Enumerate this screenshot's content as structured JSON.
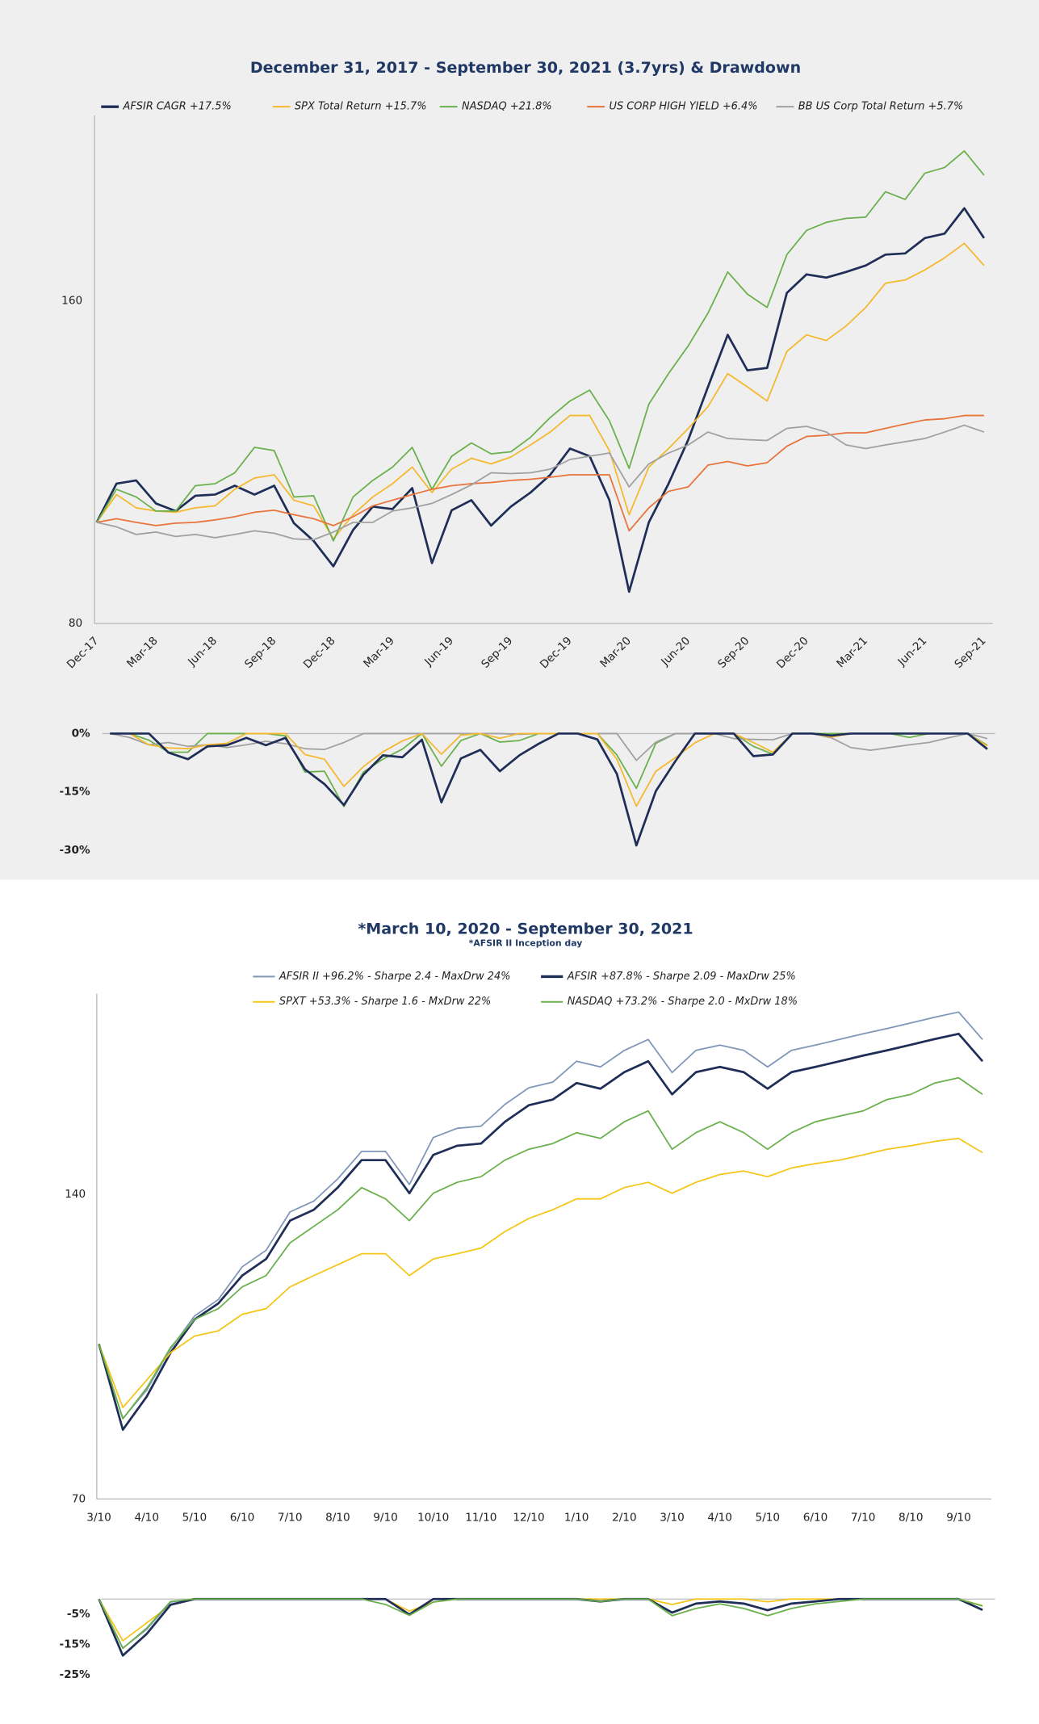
{
  "chart_data": [
    {
      "type": "line",
      "title": "December 31, 2017 - September 30, 2021 (3.7yrs) & Drawdown",
      "categories": [
        "Dec-17",
        null,
        null,
        "Mar-18",
        null,
        null,
        "Jun-18",
        null,
        null,
        "Sep-18",
        null,
        null,
        "Dec-18",
        null,
        null,
        "Mar-19",
        null,
        null,
        "Jun-19",
        null,
        null,
        "Sep-19",
        null,
        null,
        "Dec-19",
        null,
        null,
        "Mar-20",
        null,
        null,
        "Jun-20",
        null,
        null,
        "Sep-20",
        null,
        null,
        "Dec-20",
        null,
        null,
        "Mar-21",
        null,
        null,
        "Jun-21",
        null,
        null,
        "Sep-21"
      ],
      "ylim": [
        80,
        206
      ],
      "yticks": [
        80,
        160
      ],
      "grid": false,
      "series": [
        {
          "name": "AFSIR  CAGR +17.5%",
          "color": "#1f2e57",
          "values": [
            105.1,
            114.7,
            115.5,
            109.8,
            107.9,
            111.7,
            112,
            114.2,
            112,
            114.2,
            104.9,
            100.5,
            94.2,
            103.2,
            109,
            108.4,
            113.6,
            95,
            108.1,
            110.6,
            104.3,
            109,
            112.5,
            116.9,
            123.4,
            121.5,
            110.6,
            87.9,
            105.1,
            114.7,
            125.6,
            138.7,
            151.6,
            142.8,
            143.4,
            162,
            166.6,
            165.8,
            167.2,
            168.8,
            171.5,
            171.8,
            175.6,
            176.7,
            183,
            175.6
          ]
        },
        {
          "name": "SPX Total Return +15.7%",
          "color": "#f5b82e",
          "values": [
            105.1,
            112,
            108.7,
            107.9,
            107.6,
            108.7,
            109.2,
            113.3,
            116.1,
            116.9,
            110.6,
            109.2,
            101,
            107,
            111.4,
            114.7,
            118.8,
            112.5,
            118.3,
            121,
            119.6,
            121.3,
            124.3,
            127.5,
            131.6,
            131.6,
            122.9,
            107,
            118.8,
            123.4,
            128.4,
            133.8,
            142,
            138.7,
            135.2,
            147.5,
            151.6,
            150.2,
            153.8,
            158.4,
            164.4,
            165.2,
            167.7,
            170.7,
            174.3,
            168.8
          ]
        },
        {
          "name": "NASDAQ +21.8%",
          "color": "#6ab04c",
          "values": [
            105.1,
            113.3,
            111.4,
            107.9,
            107.9,
            114.2,
            114.7,
            117.4,
            123.7,
            122.9,
            111.4,
            111.7,
            100.5,
            111.4,
            115.5,
            118.8,
            123.7,
            113.3,
            121.5,
            124.8,
            122.1,
            122.6,
            126.2,
            131.1,
            135.2,
            137.9,
            130.3,
            118.5,
            134.4,
            142,
            148.9,
            157,
            167.2,
            161.7,
            158.4,
            171.5,
            177.5,
            179.5,
            180.5,
            180.8,
            187.1,
            185.2,
            191.7,
            193.1,
            197.2,
            191.2
          ]
        },
        {
          "name": "US CORP HIGH YIELD +6.4%",
          "color": "#e8743b",
          "values": [
            105.1,
            106,
            105.1,
            104.3,
            104.9,
            105.1,
            105.7,
            106.5,
            107.6,
            108.1,
            107,
            106,
            104.3,
            106.5,
            109.2,
            110.6,
            112,
            113.3,
            114.2,
            114.7,
            115,
            115.5,
            115.8,
            116.3,
            116.9,
            116.9,
            116.9,
            103,
            108.7,
            112.8,
            113.9,
            119.3,
            120.2,
            119.1,
            119.9,
            124,
            126.4,
            126.7,
            127.3,
            127.3,
            128.4,
            129.5,
            130.5,
            130.8,
            131.6,
            131.6
          ]
        },
        {
          "name": "BB US Corp Total Return +5.7%",
          "color": "#a0a0a0",
          "values": [
            105.1,
            104,
            102.1,
            102.7,
            101.6,
            102.1,
            101.3,
            102.1,
            103,
            102.4,
            101,
            100.8,
            102.7,
            105.1,
            105.1,
            107.9,
            108.7,
            109.8,
            112,
            114.4,
            117.4,
            117.2,
            117.4,
            118.3,
            120.7,
            121.5,
            122.3,
            113.9,
            119.6,
            122.3,
            124.3,
            127.5,
            125.9,
            125.6,
            125.4,
            128.4,
            128.9,
            127.5,
            124.3,
            123.4,
            124.3,
            125.1,
            125.9,
            127.5,
            129.2,
            127.5
          ]
        }
      ]
    },
    {
      "type": "line",
      "ylim": [
        -30,
        0
      ],
      "yticks": [
        {
          "value": 0,
          "label": "0%"
        },
        {
          "value": -15,
          "label": "-15%"
        },
        {
          "value": -30,
          "label": "-30%"
        }
      ],
      "grid": false,
      "series": [
        {
          "color": "#6ab04c",
          "values": [
            0,
            0,
            -1.7,
            -4.8,
            -4.8,
            0,
            0,
            0,
            0,
            -0.6,
            -9.9,
            -9.7,
            -18.8,
            -9.9,
            -6.6,
            -4,
            0,
            -8.4,
            -1.8,
            0,
            -2.2,
            -1.8,
            0,
            0,
            0,
            0,
            -5.5,
            -14.1,
            -2.5,
            0,
            0,
            0,
            0,
            -3.3,
            -5.3,
            0,
            0,
            0,
            0,
            0,
            0,
            -1,
            0,
            0,
            0,
            -3
          ]
        },
        {
          "color": "#a0a0a0",
          "values": [
            0,
            -1,
            -2.9,
            -2.3,
            -3.3,
            -2.9,
            -3.6,
            -2.9,
            -2,
            -2.6,
            -3.9,
            -4.1,
            -2.3,
            0,
            0,
            0,
            0,
            0,
            0,
            0,
            0,
            -0.2,
            0,
            0,
            0,
            0,
            0,
            -6.9,
            -2.2,
            0,
            0,
            0,
            -1.3,
            -1.5,
            -1.6,
            0,
            0,
            -1.1,
            -3.6,
            -4.3,
            -3.6,
            -2.9,
            -2.3,
            -1.1,
            0,
            -1.3
          ]
        },
        {
          "color": "#f5b82e",
          "values": [
            0,
            0,
            -2.9,
            -3.7,
            -3.9,
            -2.9,
            -2.5,
            0,
            0,
            0,
            -5.4,
            -6.6,
            -13.6,
            -8.5,
            -4.7,
            -1.9,
            0,
            -5.3,
            -0.4,
            0,
            -1.2,
            0,
            0,
            0,
            0,
            0,
            -6.6,
            -18.7,
            -9.7,
            -6.2,
            -2.4,
            0,
            0,
            -2.3,
            -4.8,
            0,
            0,
            -0.9,
            0,
            0,
            0,
            0,
            0,
            0,
            0,
            -3.2
          ]
        },
        {
          "color": "#1f2e57",
          "values": [
            0,
            0,
            0,
            -4.9,
            -6.6,
            -3.3,
            -3,
            -1.1,
            -3,
            -1.1,
            -9.2,
            -13,
            -18.4,
            -10.6,
            -5.6,
            -6.1,
            -1.6,
            -17.7,
            -6.4,
            -4.2,
            -9.7,
            -5.6,
            -2.6,
            0,
            0,
            -1.5,
            -10.4,
            -28.8,
            -14.8,
            -7.1,
            0,
            0,
            0,
            -5.8,
            -5.4,
            0,
            0,
            -0.5,
            0,
            0,
            0,
            0,
            0,
            0,
            0,
            -4
          ]
        }
      ]
    },
    {
      "type": "line",
      "title": "*March 10, 2020 - September 30, 2021",
      "subtitle": "*AFSIR II Inception day",
      "categories": [
        "3/10",
        null,
        "4/10",
        null,
        "5/10",
        null,
        "6/10",
        null,
        "7/10",
        null,
        "8/10",
        null,
        "9/10",
        null,
        "10/10",
        null,
        "11/10",
        null,
        "12/10",
        null,
        "1/10",
        null,
        "2/10",
        null,
        "3/10",
        null,
        "4/10",
        null,
        "5/10",
        null,
        "6/10",
        null,
        "7/10",
        null,
        "8/10",
        null,
        "9/10",
        null
      ],
      "ylim": [
        70,
        186
      ],
      "yticks": [
        70,
        140
      ],
      "grid": false,
      "series": [
        {
          "name": "AFSIR II +96.2% - Sharpe 2.4 - MaxDrw 24%",
          "color": "#8096b8",
          "values": [
            105.6,
            88.5,
            95,
            104.5,
            112,
            115.8,
            123.3,
            127.1,
            135.9,
            138.4,
            143.5,
            149.8,
            149.8,
            142.2,
            153,
            155.1,
            155.6,
            160.6,
            164.4,
            165.7,
            170.5,
            169.2,
            173,
            175.5,
            167.9,
            173,
            174.2,
            173,
            169.2,
            173,
            174.2,
            175.5,
            176.8,
            178,
            179.3,
            180.6,
            181.8,
            175.5
          ]
        },
        {
          "name": "AFSIR +87.8% - Sharpe 2.09 - MaxDrw 25%",
          "color": "#1f2e57",
          "values": [
            105.6,
            85.9,
            93.5,
            103.6,
            111.2,
            114.9,
            121.3,
            125.1,
            133.9,
            136.4,
            141.5,
            147.8,
            147.8,
            140.2,
            149,
            151.1,
            151.6,
            156.6,
            160.4,
            161.7,
            165.5,
            164.2,
            168,
            170.5,
            162.9,
            168,
            169.2,
            168,
            164.2,
            168,
            169.2,
            170.5,
            171.8,
            173,
            174.3,
            175.6,
            176.8,
            170.5
          ]
        },
        {
          "name": "SPXT +53.3% - Sharpe 1.6 - MxDrw 22%",
          "color": "#f5c518",
          "values": [
            105.6,
            91,
            97.3,
            103.6,
            107.4,
            108.6,
            112.4,
            113.7,
            118.7,
            121.3,
            123.8,
            126.3,
            126.3,
            121.3,
            125.1,
            126.3,
            127.6,
            131.4,
            134.4,
            136.4,
            138.9,
            138.9,
            141.5,
            142.7,
            140.2,
            142.7,
            144.5,
            145.3,
            144,
            146,
            147,
            147.8,
            149,
            150.3,
            151.1,
            152.1,
            152.8,
            149.5
          ]
        },
        {
          "name": "NASDAQ +73.2% - Sharpe 2.0 - MxDrw 18%",
          "color": "#6ab04c",
          "values": [
            105.6,
            88.4,
            95.5,
            104.8,
            111.2,
            113.7,
            118.7,
            121.3,
            128.8,
            132.6,
            136.4,
            141.5,
            138.9,
            133.9,
            140.2,
            142.7,
            144,
            147.8,
            150.3,
            151.6,
            154.1,
            152.8,
            156.6,
            159.1,
            150.3,
            154.1,
            156.6,
            154.1,
            150.3,
            154.1,
            156.6,
            157.9,
            159.1,
            161.7,
            162.9,
            165.5,
            166.7,
            162.9
          ]
        }
      ]
    },
    {
      "type": "line",
      "ylim": [
        -26,
        0
      ],
      "yticks": [
        {
          "value": -5,
          "label": "-5%"
        },
        {
          "value": -15,
          "label": "-15%"
        },
        {
          "value": -25,
          "label": "-25%"
        }
      ],
      "grid": false,
      "series": [
        {
          "color": "#f5c518",
          "values": [
            0,
            -13.8,
            -7.9,
            -1.9,
            0,
            0,
            0,
            0,
            0,
            0,
            0,
            0,
            0,
            -4,
            -1,
            0,
            0,
            0,
            0,
            0,
            0,
            0,
            0,
            0,
            -1.8,
            0,
            0,
            0,
            -0.9,
            0,
            0,
            0,
            0,
            0,
            0,
            0,
            0,
            -2.2
          ]
        },
        {
          "color": "#8096b8",
          "values": [
            0,
            -16.2,
            -10,
            -1,
            0,
            0,
            0,
            0,
            0,
            0,
            0,
            0,
            0,
            -5.1,
            0,
            0,
            0,
            0,
            0,
            0,
            0,
            -0.8,
            0,
            0,
            -4.3,
            -1.4,
            -0.7,
            -1.4,
            -3.6,
            -1.4,
            -0.7,
            0,
            0,
            0,
            0,
            0,
            0,
            -3.5
          ]
        },
        {
          "color": "#1f2e57",
          "values": [
            0,
            -18.7,
            -11.5,
            -1.9,
            0,
            0,
            0,
            0,
            0,
            0,
            0,
            0,
            0,
            -5.1,
            0,
            0,
            0,
            0,
            0,
            0,
            0,
            -0.8,
            0,
            0,
            -4.5,
            -1.5,
            -0.8,
            -1.5,
            -3.7,
            -1.5,
            -0.8,
            0,
            0,
            0,
            0,
            0,
            0,
            -3.6
          ]
        },
        {
          "color": "#6ab04c",
          "values": [
            0,
            -16.3,
            -9.6,
            -0.8,
            0,
            0,
            0,
            0,
            0,
            0,
            0,
            0,
            -1.8,
            -5.4,
            -1,
            0,
            0,
            0,
            0,
            0,
            0,
            -0.8,
            0,
            0,
            -5.5,
            -3.1,
            -1.6,
            -3.1,
            -5.5,
            -3.1,
            -1.6,
            -0.8,
            0,
            0,
            0,
            0,
            0,
            -2.3
          ]
        }
      ]
    }
  ]
}
